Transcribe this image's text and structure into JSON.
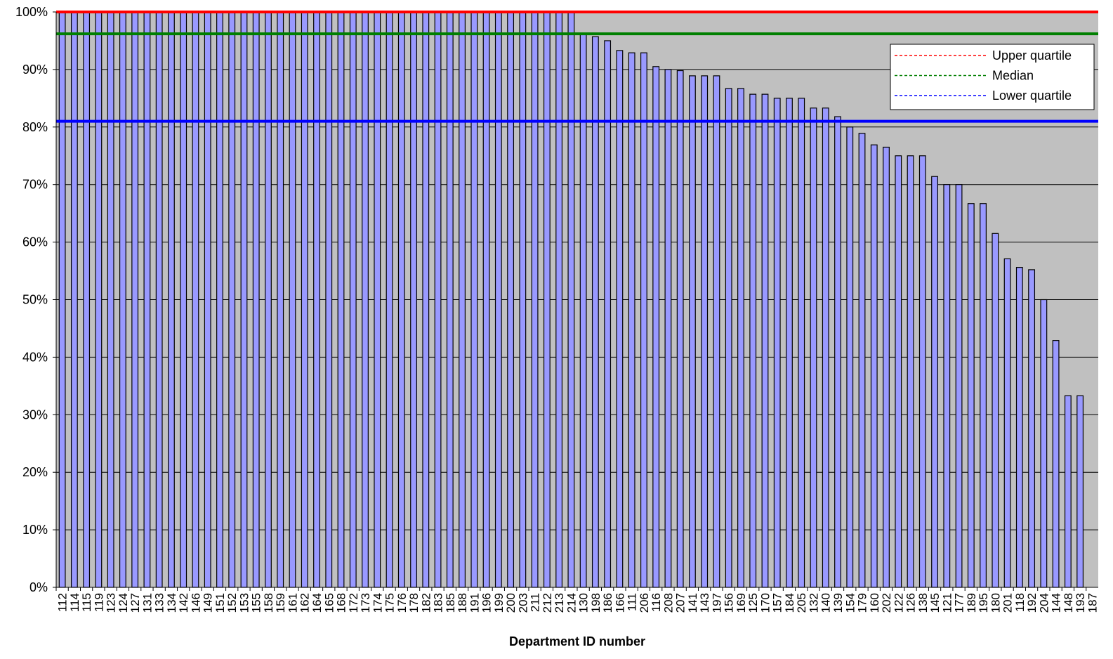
{
  "chart_data": {
    "type": "bar",
    "xlabel": "Department ID number",
    "ylabel": "",
    "ylim": [
      0,
      1
    ],
    "y_ticks": [
      "0%",
      "10%",
      "20%",
      "30%",
      "40%",
      "50%",
      "60%",
      "70%",
      "80%",
      "90%",
      "100%"
    ],
    "grid": true,
    "legend_position": "top-right",
    "categories": [
      "112",
      "114",
      "115",
      "119",
      "123",
      "124",
      "127",
      "131",
      "133",
      "134",
      "142",
      "146",
      "149",
      "151",
      "152",
      "153",
      "155",
      "158",
      "159",
      "161",
      "162",
      "164",
      "165",
      "168",
      "172",
      "173",
      "174",
      "175",
      "176",
      "178",
      "182",
      "183",
      "185",
      "188",
      "191",
      "196",
      "199",
      "200",
      "203",
      "211",
      "212",
      "213",
      "214",
      "130",
      "198",
      "186",
      "166",
      "111",
      "206",
      "116",
      "208",
      "207",
      "141",
      "143",
      "197",
      "156",
      "169",
      "125",
      "170",
      "157",
      "184",
      "205",
      "132",
      "140",
      "139",
      "154",
      "179",
      "160",
      "202",
      "122",
      "126",
      "138",
      "145",
      "121",
      "177",
      "189",
      "195",
      "180",
      "201",
      "118",
      "192",
      "204",
      "144",
      "148",
      "193",
      "187"
    ],
    "values": [
      1,
      1,
      1,
      1,
      1,
      1,
      1,
      1,
      1,
      1,
      1,
      1,
      1,
      1,
      1,
      1,
      1,
      1,
      1,
      1,
      1,
      1,
      1,
      1,
      1,
      1,
      1,
      1,
      1,
      1,
      1,
      1,
      1,
      1,
      1,
      1,
      1,
      1,
      1,
      1,
      1,
      1,
      1,
      0.962,
      0.957,
      0.95,
      0.933,
      0.929,
      0.929,
      0.905,
      0.9,
      0.898,
      0.889,
      0.889,
      0.889,
      0.867,
      0.867,
      0.857,
      0.857,
      0.85,
      0.85,
      0.85,
      0.833,
      0.833,
      0.818,
      0.8,
      0.789,
      0.769,
      0.765,
      0.75,
      0.75,
      0.75,
      0.714,
      0.7,
      0.7,
      0.667,
      0.667,
      0.615,
      0.571,
      0.556,
      0.552,
      0.5,
      0.429,
      0.333,
      0.333,
      0
    ],
    "reference_lines": [
      {
        "name": "Upper quartile",
        "value": 1.0,
        "color": "#ff0000"
      },
      {
        "name": "Median",
        "value": 0.962,
        "color": "#008000"
      },
      {
        "name": "Lower quartile",
        "value": 0.81,
        "color": "#0000ff"
      }
    ],
    "colors": {
      "plot_background": "#c0c0c0",
      "bar_fill": "#9999ff",
      "bar_stroke": "#000000",
      "gridline": "#000000"
    }
  }
}
